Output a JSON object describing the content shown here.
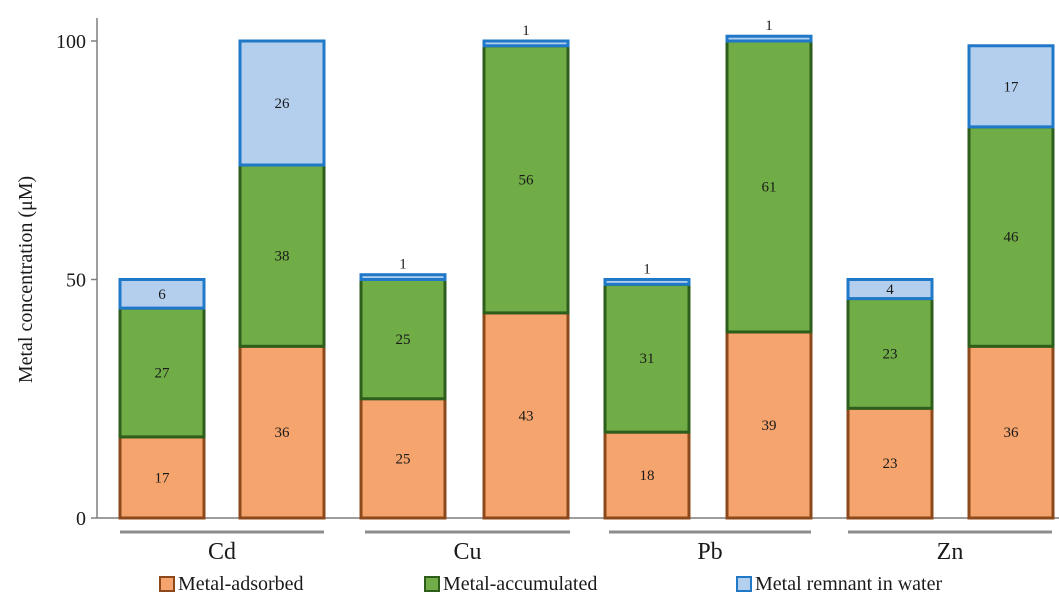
{
  "chart_data": {
    "type": "bar",
    "stacked": true,
    "title": "",
    "xlabel": "",
    "ylabel": "Metal concentration (μM)",
    "ylim": [
      0,
      100
    ],
    "yticks": [
      "0",
      "50",
      "100"
    ],
    "groups": [
      "Cd",
      "Cu",
      "Pb",
      "Zn"
    ],
    "bars_per_group": 2,
    "series": [
      {
        "name": "Metal-adsorbed",
        "fill": "#f4a46c",
        "stroke": "#8c4a1c",
        "values": [
          17,
          36,
          25,
          43,
          18,
          39,
          23,
          36
        ],
        "labels": [
          "17",
          "36",
          "25",
          "43",
          "18",
          "39",
          "23",
          "36"
        ]
      },
      {
        "name": "Metal-accumulated",
        "fill": "#70ad47",
        "stroke": "#2e5e1c",
        "values": [
          27,
          38,
          25,
          56,
          31,
          61,
          23,
          46
        ],
        "labels": [
          "27",
          "38",
          "25",
          "56",
          "31",
          "61",
          "23",
          "46"
        ]
      },
      {
        "name": "Metal remnant in water",
        "fill": "#b4cfee",
        "stroke": "#1f78c8",
        "values": [
          6,
          26,
          1,
          1,
          1,
          1,
          4,
          17
        ],
        "labels": [
          "6",
          "26",
          "1",
          "1",
          "1",
          "1",
          "4",
          "17"
        ]
      }
    ],
    "bar_totals": [
      50,
      100,
      50,
      100,
      50,
      100,
      50,
      100
    ],
    "legend_position": "bottom",
    "grid": false
  }
}
